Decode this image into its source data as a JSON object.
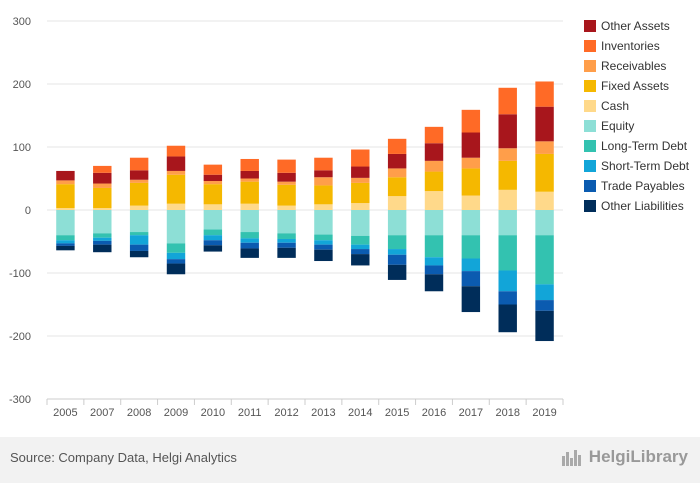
{
  "chart_data": {
    "type": "bar",
    "stacked": true,
    "categories": [
      "2005",
      "2007",
      "2008",
      "2009",
      "2010",
      "2011",
      "2012",
      "2013",
      "2014",
      "2015",
      "2016",
      "2017",
      "2018",
      "2019"
    ],
    "y_ticks": [
      300,
      200,
      100,
      0,
      -100,
      -200,
      -300
    ],
    "ylim": [
      -300,
      300
    ],
    "grid": true,
    "legend_position": "right",
    "positive_series": [
      {
        "name": "Fixed Assets",
        "color": "#f5b800",
        "values": [
          38,
          32,
          36,
          46,
          32,
          35,
          33,
          30,
          32,
          30,
          31,
          43,
          46,
          60
        ]
      },
      {
        "name": "Receivables",
        "color": "#ff9e4a",
        "values": [
          6,
          7,
          5,
          6,
          5,
          5,
          5,
          13,
          8,
          14,
          17,
          17,
          20,
          20
        ]
      },
      {
        "name": "Other Assets",
        "color": "#a8161c",
        "values": [
          15,
          17,
          15,
          23,
          10,
          12,
          14,
          11,
          18,
          23,
          28,
          40,
          54,
          55
        ]
      },
      {
        "name": "Inventories",
        "color": "#ff6a26",
        "values": [
          0,
          11,
          20,
          17,
          16,
          19,
          21,
          20,
          27,
          24,
          26,
          36,
          42,
          40
        ]
      }
    ],
    "positive_cash": {
      "name": "Cash",
      "color": "#ffd98a",
      "values": [
        3,
        3,
        7,
        10,
        9,
        10,
        7,
        9,
        11,
        22,
        30,
        23,
        32,
        29
      ]
    },
    "negative_series": [
      {
        "name": "Equity",
        "color": "#8ddfd6",
        "values": [
          40,
          37,
          35,
          53,
          31,
          35,
          37,
          39,
          41,
          40,
          40,
          40,
          40,
          40
        ]
      },
      {
        "name": "Long-Term Debt",
        "color": "#33c2b0",
        "values": [
          8,
          7,
          5,
          15,
          9,
          10,
          9,
          9,
          14,
          22,
          35,
          37,
          56,
          78
        ]
      },
      {
        "name": "Short-Term Debt",
        "color": "#12a5d8",
        "values": [
          5,
          5,
          15,
          10,
          8,
          7,
          6,
          7,
          7,
          9,
          13,
          20,
          33,
          25
        ]
      },
      {
        "name": "Trade Payables",
        "color": "#0b5bb0",
        "values": [
          4,
          6,
          10,
          7,
          8,
          9,
          8,
          8,
          8,
          16,
          14,
          24,
          21,
          17
        ]
      },
      {
        "name": "Other Liabilities",
        "color": "#002d5a",
        "values": [
          7,
          12,
          10,
          17,
          10,
          15,
          16,
          18,
          18,
          24,
          27,
          41,
          44,
          48
        ]
      }
    ],
    "legend": [
      {
        "name": "Other Assets",
        "color": "#a8161c"
      },
      {
        "name": "Inventories",
        "color": "#ff6a26"
      },
      {
        "name": "Receivables",
        "color": "#ff9e4a"
      },
      {
        "name": "Fixed Assets",
        "color": "#f5b800"
      },
      {
        "name": "Cash",
        "color": "#ffd98a"
      },
      {
        "name": "Equity",
        "color": "#8ddfd6"
      },
      {
        "name": "Long-Term Debt",
        "color": "#33c2b0"
      },
      {
        "name": "Short-Term Debt",
        "color": "#12a5d8"
      },
      {
        "name": "Trade Payables",
        "color": "#0b5bb0"
      },
      {
        "name": "Other Liabilities",
        "color": "#002d5a"
      }
    ]
  },
  "footer": {
    "source": "Source: Company Data, Helgi Analytics",
    "brand_name": "HelgiLibrary",
    "brand_icon": "city-skyline-icon"
  }
}
